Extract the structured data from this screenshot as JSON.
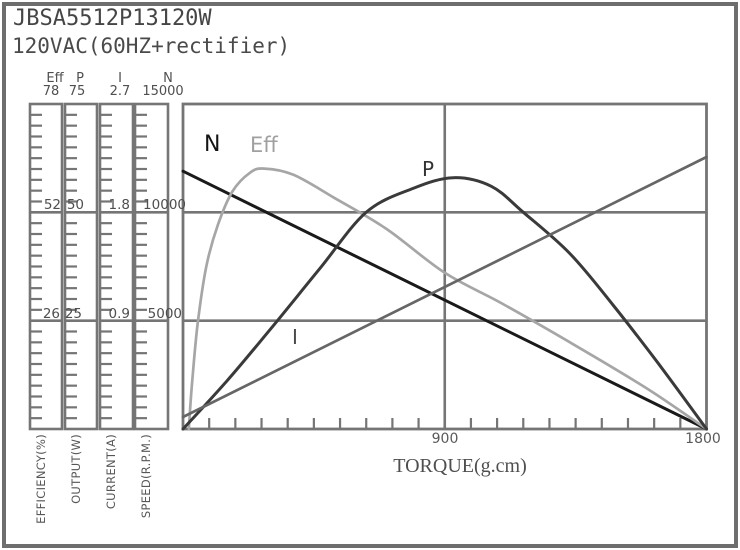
{
  "window": {
    "title": "JBSA5512P13120W",
    "subtitle": "120VAC(60HZ+rectifier)"
  },
  "colors": {
    "frame": "#6e6e6e",
    "grid": "#757575",
    "text": "#4f4f4f",
    "curve_n": "#1a1a1a",
    "curve_eff": "#a6a6a6",
    "curve_p": "#3a3a3a",
    "curve_i": "#666666"
  },
  "left_axes": [
    {
      "name": "Eff",
      "axis_label": "EFFICIENCY(%)",
      "tick_top": "78",
      "tick_mid": "52",
      "tick_low": "26"
    },
    {
      "name": "P",
      "axis_label": "OUTPUT(W)",
      "tick_top": "75",
      "tick_mid": "50",
      "tick_low": "25"
    },
    {
      "name": "I",
      "axis_label": "CURRENT(A)",
      "tick_top": "2.7",
      "tick_mid": "1.8",
      "tick_low": "0.9"
    },
    {
      "name": "N",
      "axis_label": "SPEED(R.P.M.)",
      "tick_top": "15000",
      "tick_mid": "10000",
      "tick_low": "5000"
    }
  ],
  "x_axis": {
    "title": "TORQUE(g.cm)",
    "tick_900": "900",
    "tick_1800": "1800",
    "min": 0,
    "max": 1800,
    "minor_tick_step": 90,
    "major_gridline_x": 900
  },
  "chart_data": {
    "type": "line",
    "title": "JBSA5512P13120W motor performance curves",
    "xlabel": "TORQUE(g.cm)",
    "x_range": [
      0,
      1800
    ],
    "grid": "frame box; vertical gridline at x=900; horizontal gridlines at 1/3 and 2/3 of axis height",
    "legend_position": "labels next to curves",
    "series": [
      {
        "label": "N",
        "unit": "SPEED(R.P.M.)",
        "axis_max": 15000,
        "color": "#1a1a1a",
        "shape": "straight",
        "points": [
          [
            0,
            11900
          ],
          [
            1800,
            0
          ]
        ]
      },
      {
        "label": "Eff",
        "unit": "EFFICIENCY(%)",
        "axis_max": 78,
        "color": "#a6a6a6",
        "shape": "curve",
        "points": [
          [
            20,
            0
          ],
          [
            30,
            10
          ],
          [
            50,
            25
          ],
          [
            80,
            39
          ],
          [
            120,
            49
          ],
          [
            170,
            57
          ],
          [
            230,
            61.5
          ],
          [
            280,
            62.5
          ],
          [
            380,
            61
          ],
          [
            520,
            55.5
          ],
          [
            700,
            48
          ],
          [
            900,
            37.5
          ],
          [
            1100,
            30
          ],
          [
            1350,
            20
          ],
          [
            1600,
            9.5
          ],
          [
            1800,
            0
          ]
        ]
      },
      {
        "label": "P",
        "unit": "OUTPUT(W)",
        "axis_max": 75,
        "color": "#3a3a3a",
        "shape": "curve",
        "points": [
          [
            0,
            0
          ],
          [
            150,
            11
          ],
          [
            300,
            23
          ],
          [
            470,
            37
          ],
          [
            630,
            50
          ],
          [
            790,
            55.5
          ],
          [
            930,
            58
          ],
          [
            1060,
            56
          ],
          [
            1170,
            50
          ],
          [
            1330,
            40.5
          ],
          [
            1480,
            28.5
          ],
          [
            1630,
            15.5
          ],
          [
            1800,
            0
          ]
        ]
      },
      {
        "label": "I",
        "unit": "CURRENT(A)",
        "axis_max": 2.7,
        "color": "#666666",
        "shape": "straight",
        "points": [
          [
            0,
            0.1
          ],
          [
            1800,
            2.26
          ]
        ]
      }
    ]
  }
}
